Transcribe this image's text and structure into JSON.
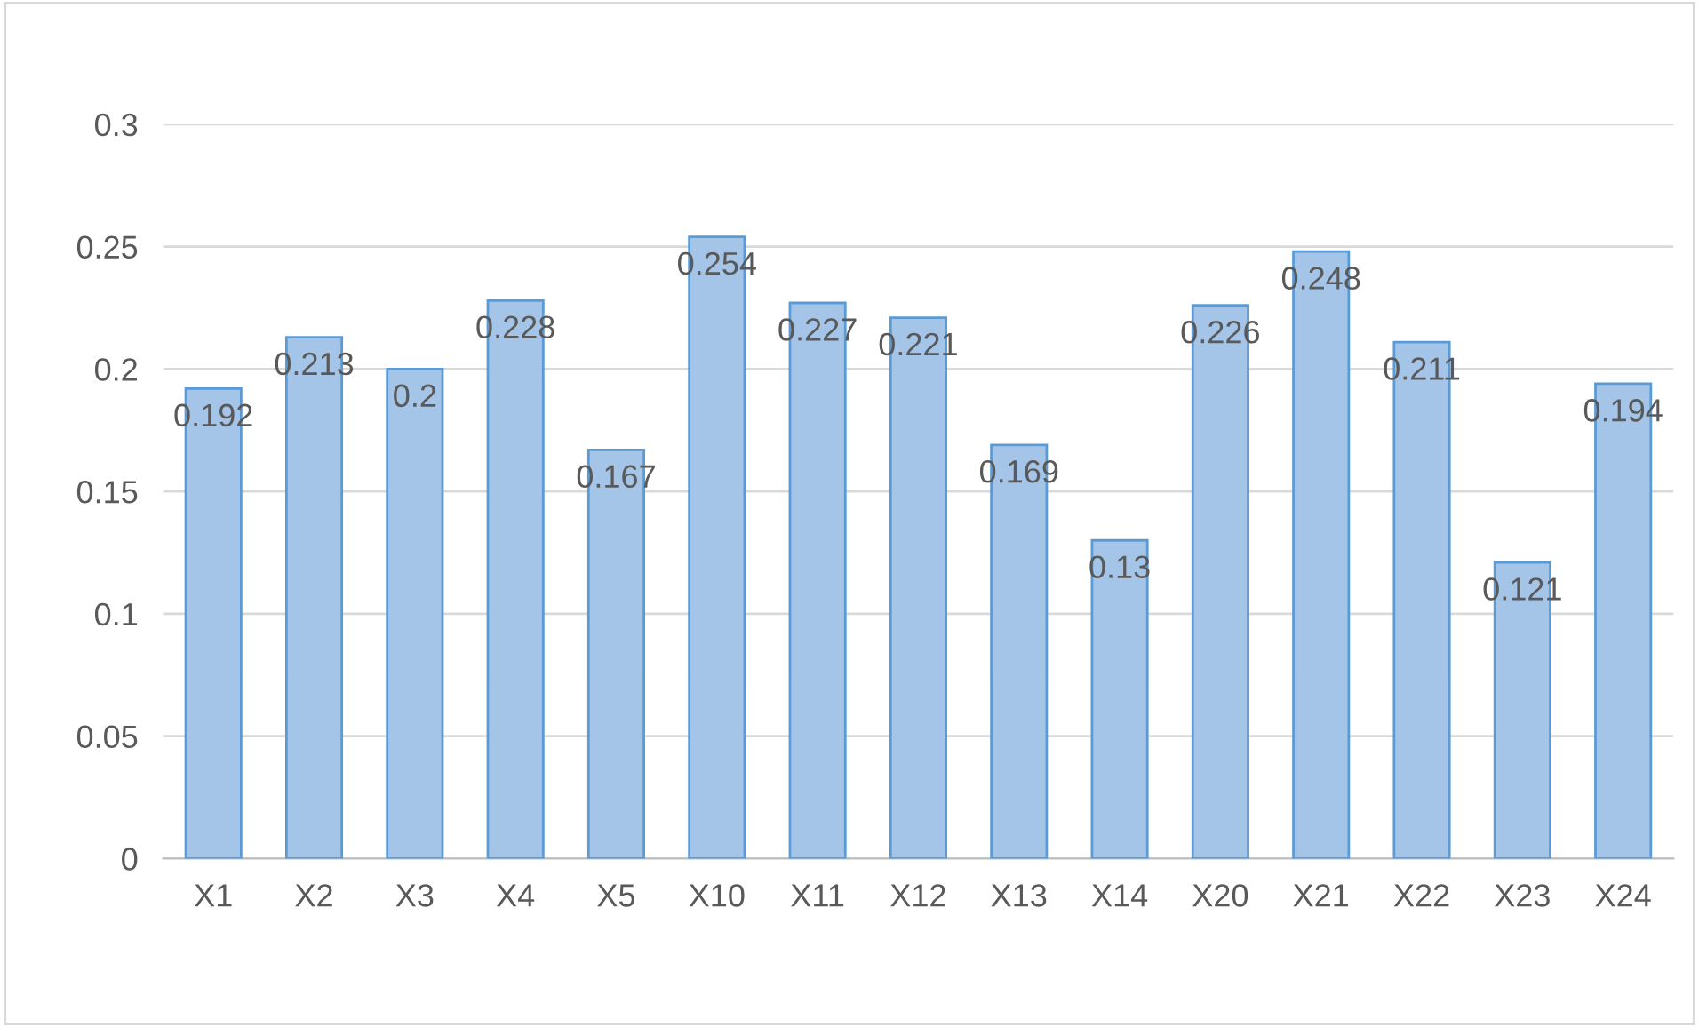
{
  "chart_data": {
    "type": "bar",
    "categories": [
      "X1",
      "X2",
      "X3",
      "X4",
      "X5",
      "X10",
      "X11",
      "X12",
      "X13",
      "X14",
      "X20",
      "X21",
      "X22",
      "X23",
      "X24"
    ],
    "values": [
      0.192,
      0.213,
      0.2,
      0.228,
      0.167,
      0.254,
      0.227,
      0.221,
      0.169,
      0.13,
      0.226,
      0.248,
      0.211,
      0.121,
      0.194
    ],
    "color": "#a4c4e8",
    "ylim": [
      0,
      0.3
    ],
    "yticks": [
      0,
      0.05,
      0.1,
      0.15,
      0.2,
      0.25,
      0.3
    ],
    "grid": "y",
    "data_labels": true
  }
}
